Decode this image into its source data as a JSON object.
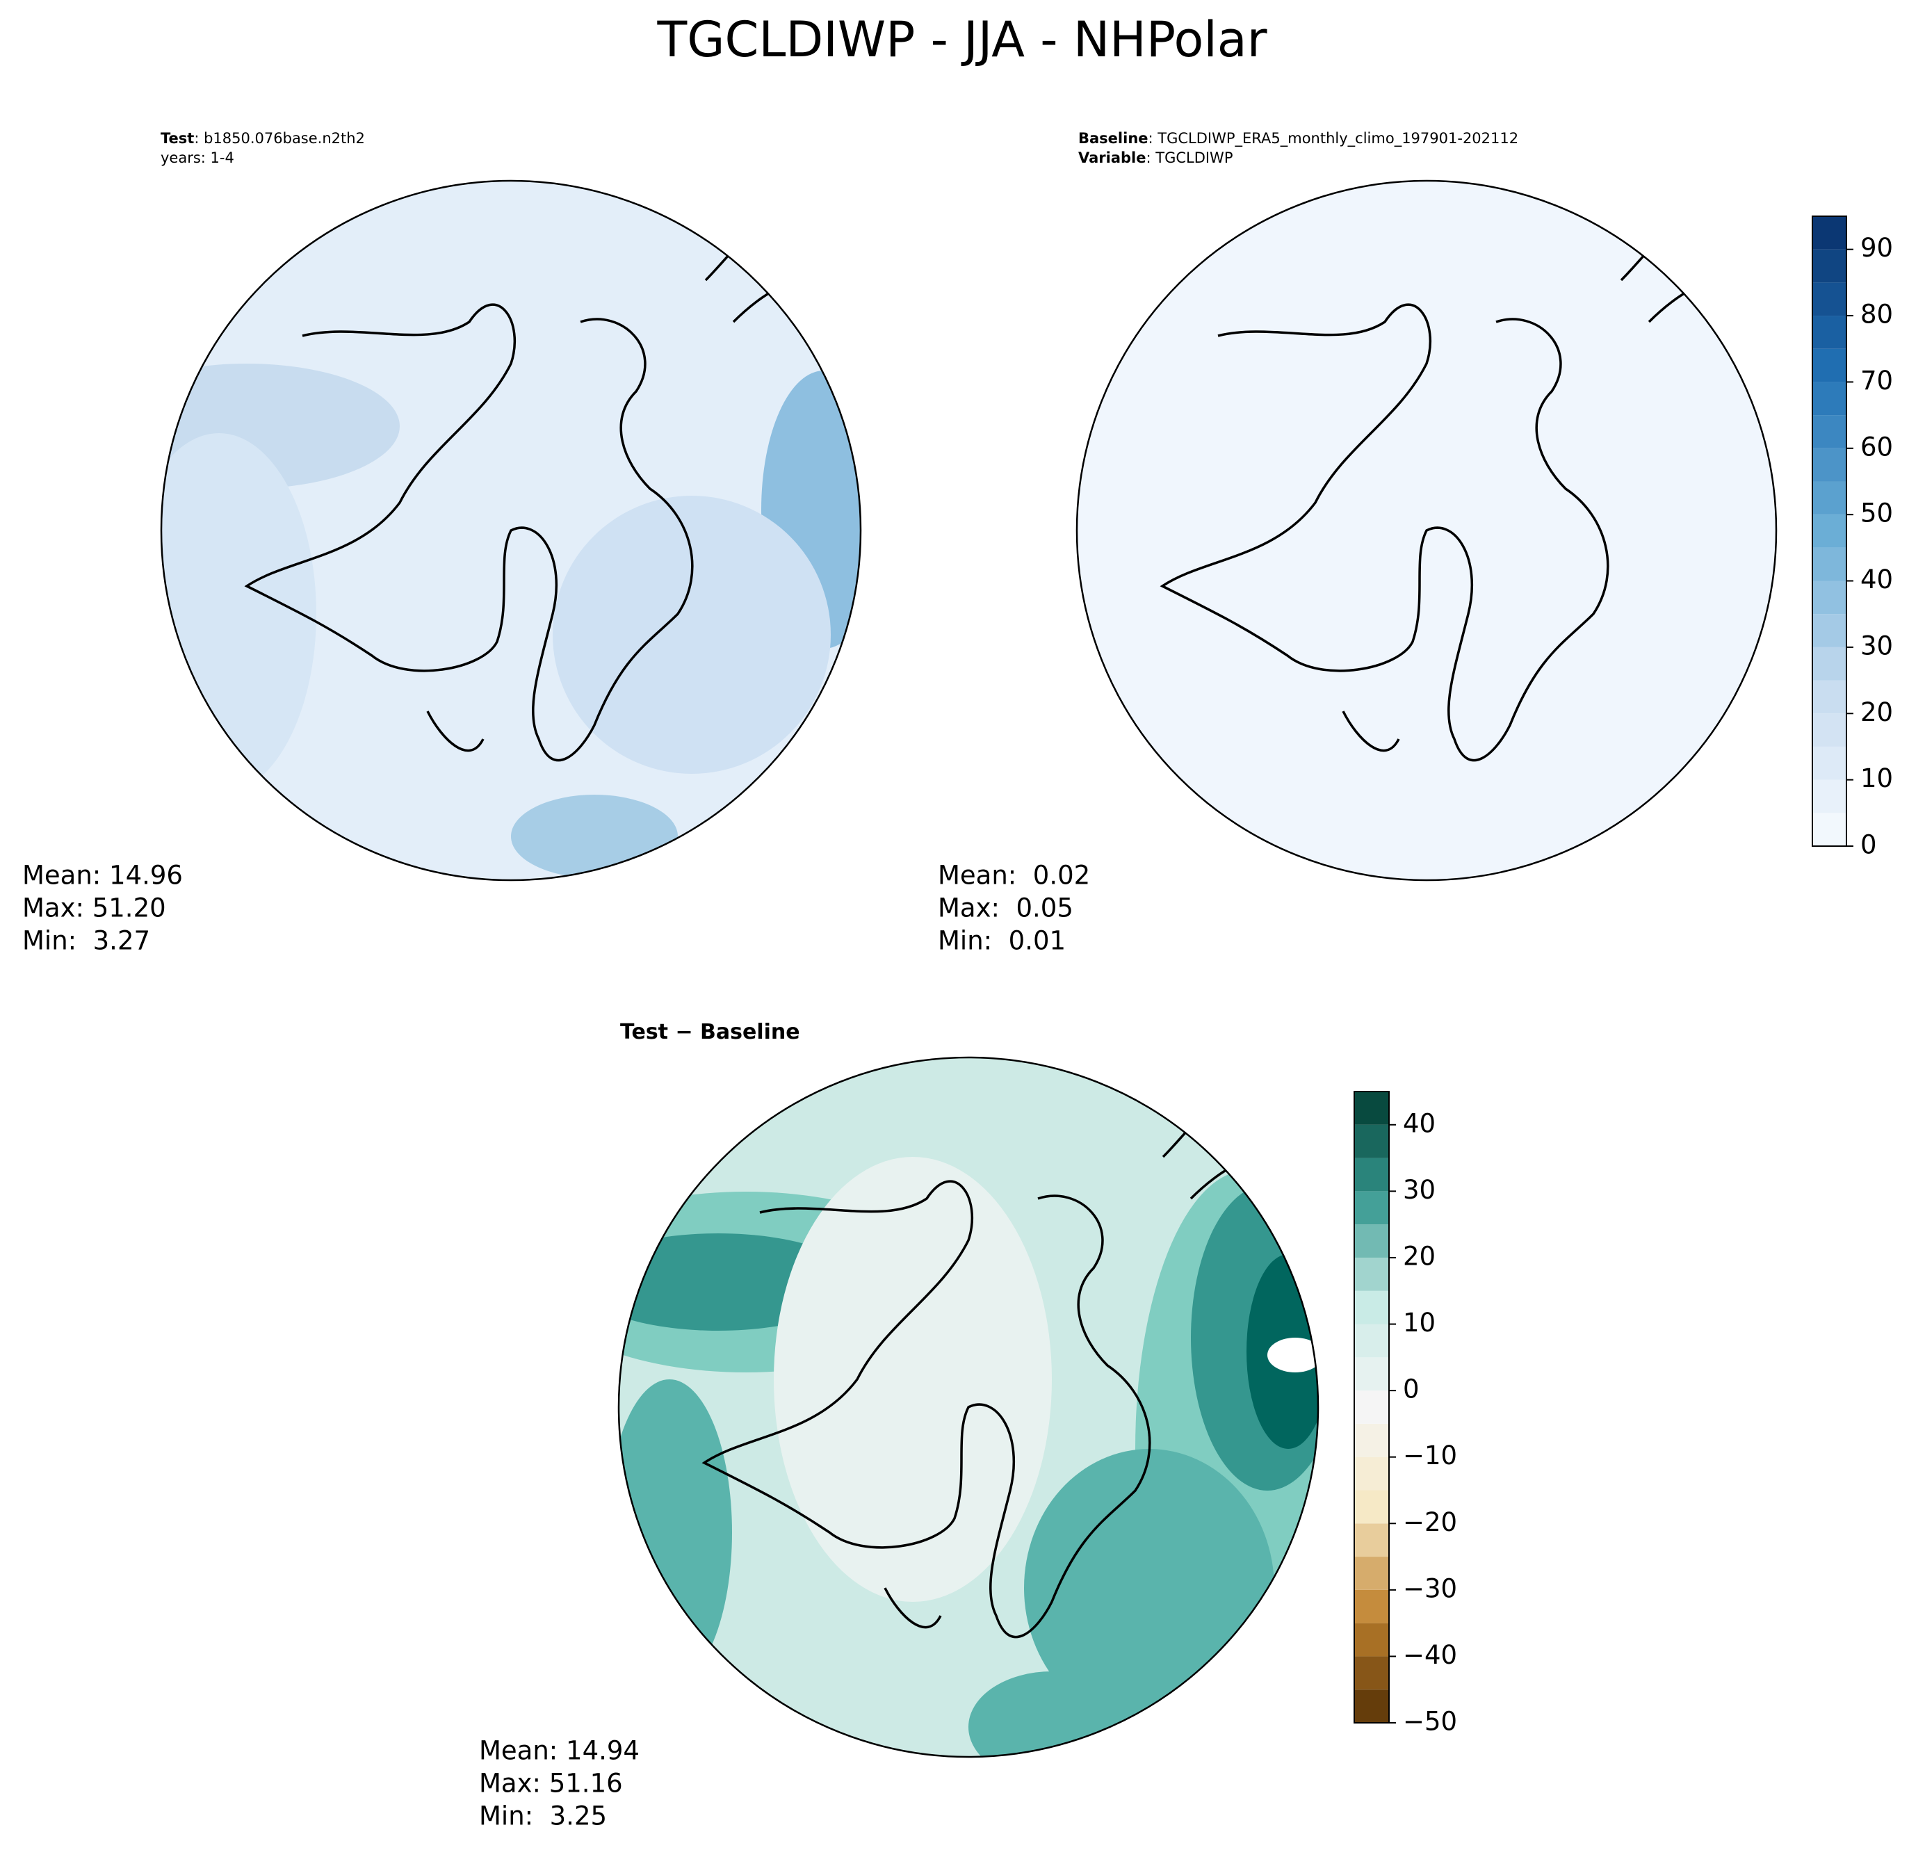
{
  "title": "TGCLDIWP - JJA - NHPolar",
  "panels": [
    {
      "header": [
        {
          "key": "Test",
          "value": ": b1850.076base.n2th2"
        },
        {
          "key": "",
          "value": "years: 1-4"
        }
      ],
      "stats": [
        "Mean: 14.96",
        "Max: 51.20",
        "Min:  3.27"
      ],
      "fill": "#e3eef9"
    },
    {
      "header": [
        {
          "key": "Baseline",
          "value": ": TGCLDIWP_ERA5_monthly_climo_197901-202112"
        },
        {
          "key": "Variable",
          "value": ": TGCLDIWP"
        }
      ],
      "stats": [
        "Mean:  0.02",
        "Max:  0.05",
        "Min:  0.01"
      ],
      "fill": "#f0f6fd"
    },
    {
      "header": [
        {
          "key": "Test − Baseline",
          "value": ""
        }
      ],
      "stats": [
        "Mean: 14.94",
        "Max: 51.16",
        "Min:  3.25"
      ],
      "fill": "#cdeae5"
    }
  ],
  "colorbars": [
    {
      "lim": [
        0,
        95
      ],
      "step": 5,
      "ticks": [
        0,
        10,
        20,
        30,
        40,
        50,
        60,
        70,
        80,
        90
      ],
      "colors": [
        "#f7fbff",
        "#c6dbef",
        "#6baed6",
        "#2171b5",
        "#08306b"
      ]
    },
    {
      "lim": [
        -50,
        45
      ],
      "step": 5,
      "ticks": [
        {
          "value": -50,
          "label": "−50"
        },
        {
          "value": -40,
          "label": "−40"
        },
        {
          "value": -30,
          "label": "−30"
        },
        {
          "value": -20,
          "label": "−20"
        },
        {
          "value": -10,
          "label": "−10"
        },
        0,
        10,
        20,
        30,
        40
      ],
      "colors": [
        "#543005",
        "#bf812d",
        "#f6e8c3",
        "#f5f5f5",
        "#c7eae5",
        "#35978f",
        "#003c30"
      ]
    }
  ]
}
